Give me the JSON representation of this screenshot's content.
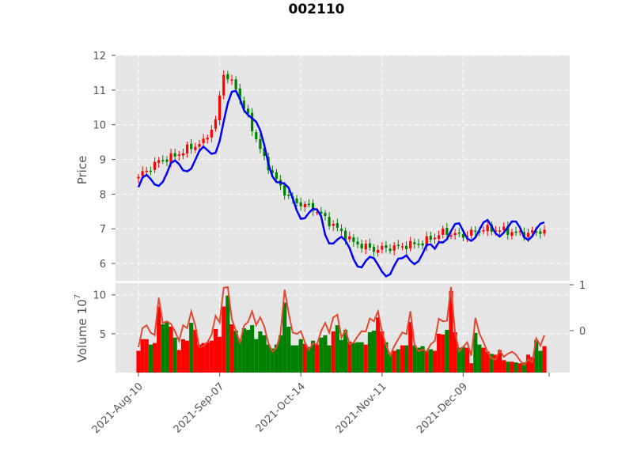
{
  "chart_data": {
    "type": "candlestick",
    "title": "002110",
    "price_panel": {
      "ylabel": "Price",
      "ylim": [
        5.5,
        12
      ],
      "yticks": [
        "6",
        "7",
        "8",
        "9",
        "10",
        "11",
        "12"
      ],
      "ytick_values": [
        6,
        7,
        8,
        9,
        10,
        11,
        12
      ]
    },
    "volume_panel": {
      "ylabel": "Volume",
      "ylabel_exp": "10",
      "ylabel_pow": "7",
      "ylim": [
        0,
        11.5
      ],
      "yticks": [
        "5",
        "10"
      ],
      "ytick_values": [
        5,
        10
      ],
      "right_yticks": [
        "0",
        "1"
      ],
      "right_ytick_values": [
        0,
        1
      ]
    },
    "x_ticks": [
      {
        "index": 0,
        "label": "2021-Aug-10"
      },
      {
        "index": 20,
        "label": "2021-Sep-07"
      },
      {
        "index": 40,
        "label": "2021-Oct-14"
      },
      {
        "index": 60,
        "label": "2021-Nov-11"
      },
      {
        "index": 80,
        "label": "2021-Dec-09"
      }
    ],
    "grid": true,
    "n_points": 101,
    "close_anchors": [
      [
        0,
        8.5
      ],
      [
        5,
        8.95
      ],
      [
        9,
        9.1
      ],
      [
        12,
        9.3
      ],
      [
        16,
        9.5
      ],
      [
        19,
        10.1
      ],
      [
        21,
        11.5
      ],
      [
        24,
        11.05
      ],
      [
        27,
        10.2
      ],
      [
        31,
        9.0
      ],
      [
        35,
        8.2
      ],
      [
        38,
        7.8
      ],
      [
        43,
        7.6
      ],
      [
        47,
        7.2
      ],
      [
        53,
        6.6
      ],
      [
        58,
        6.4
      ],
      [
        65,
        6.5
      ],
      [
        70,
        6.6
      ],
      [
        75,
        6.9
      ],
      [
        80,
        6.8
      ],
      [
        85,
        7.0
      ],
      [
        90,
        6.95
      ],
      [
        95,
        6.85
      ],
      [
        100,
        6.95
      ]
    ],
    "volume_values": [
      2.8,
      4.3,
      4.3,
      3.6,
      3.8,
      8.5,
      6.2,
      6.5,
      5.9,
      4.5,
      2.9,
      4.3,
      4.1,
      6.4,
      5.5,
      3.6,
      3.8,
      3.9,
      4.1,
      5.6,
      4.6,
      8.5,
      9.9,
      6.2,
      5.4,
      4.2,
      5.7,
      5.5,
      6.1,
      4.3,
      5.3,
      4.8,
      3.6,
      3.1,
      3.6,
      4.8,
      9.0,
      5.9,
      3.5,
      3.5,
      4.3,
      3.7,
      3.3,
      4.1,
      3.6,
      4.5,
      4.8,
      3.5,
      5.3,
      6.1,
      4.2,
      5.5,
      4.0,
      3.8,
      3.9,
      3.9,
      3.6,
      5.2,
      5.4,
      7.1,
      5.3,
      3.9,
      2.4,
      2.8,
      3.0,
      3.5,
      3.5,
      6.5,
      3.5,
      3.2,
      3.4,
      2.8,
      3.0,
      2.8,
      5.0,
      4.9,
      5.5,
      10.5,
      5.2,
      3.2,
      3.3,
      3.2,
      1.2,
      5.1,
      3.6,
      3.2,
      2.7,
      2.4,
      2.3,
      2.9,
      1.6,
      1.4,
      1.4,
      1.3,
      1.2,
      1.3,
      2.3,
      2.0,
      4.2,
      2.8,
      3.4
    ],
    "up_color": "#ff0000",
    "down_color": "#008000",
    "ma_color": "#0000ff",
    "vol_line_color": "#e24a33"
  }
}
